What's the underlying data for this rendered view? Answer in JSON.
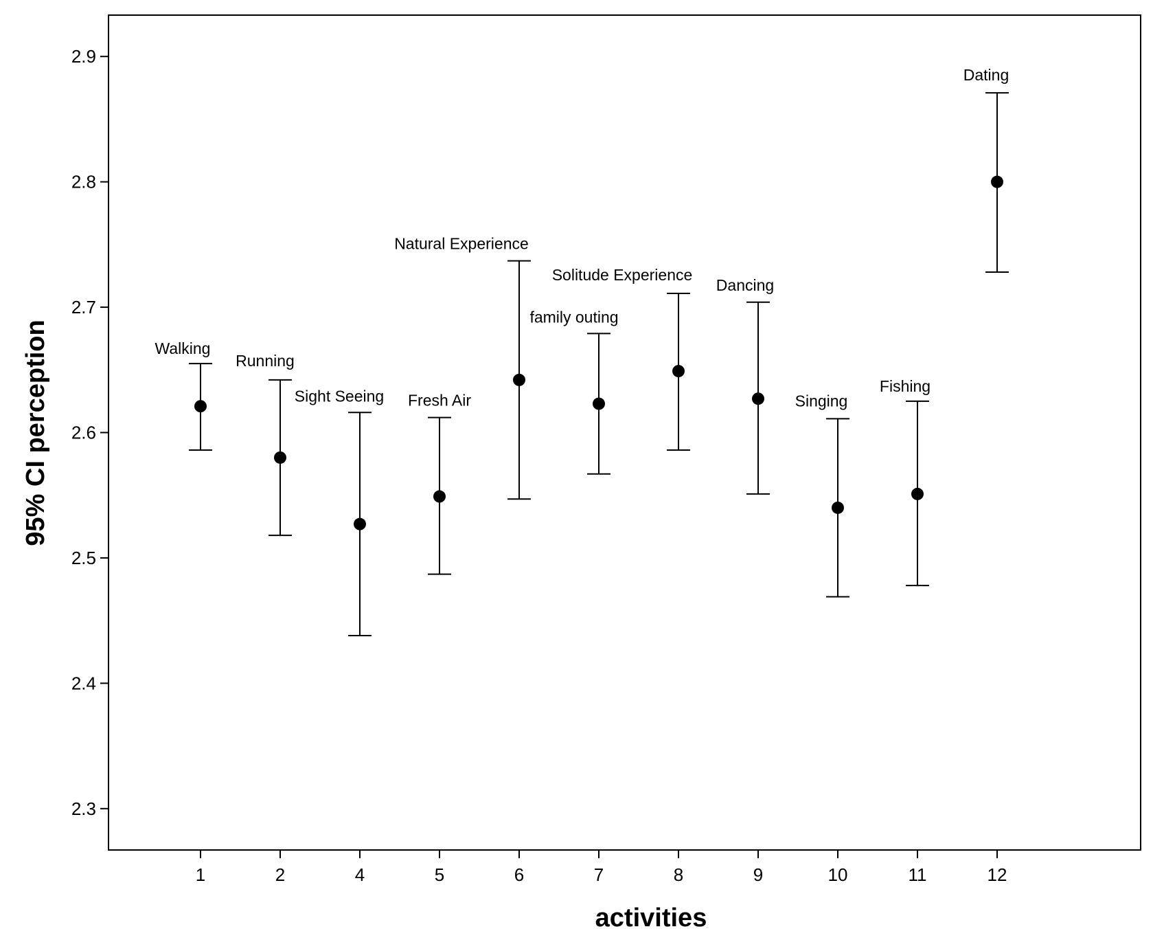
{
  "chart_data": {
    "type": "errorbar",
    "xlabel": "activities",
    "ylabel": "95% CI perception",
    "ylim": [
      2.267,
      2.933
    ],
    "yticks": [
      2.3,
      2.4,
      2.5,
      2.6,
      2.7,
      2.8,
      2.9
    ],
    "grid": false,
    "legend": "none",
    "colors": {
      "marker": "#000000",
      "axis": "#000000",
      "background": "#ffffff"
    },
    "points": [
      {
        "x": "1",
        "label": "Walking",
        "mean": 2.621,
        "lower": 2.586,
        "upper": 2.655
      },
      {
        "x": "2",
        "label": "Running",
        "mean": 2.58,
        "lower": 2.518,
        "upper": 2.642
      },
      {
        "x": "4",
        "label": "Sight Seeing",
        "mean": 2.527,
        "lower": 2.438,
        "upper": 2.616
      },
      {
        "x": "5",
        "label": "Fresh Air",
        "mean": 2.549,
        "lower": 2.487,
        "upper": 2.612
      },
      {
        "x": "6",
        "label": "Natural Experience",
        "mean": 2.642,
        "lower": 2.547,
        "upper": 2.737
      },
      {
        "x": "7",
        "label": "family outing",
        "mean": 2.623,
        "lower": 2.567,
        "upper": 2.679
      },
      {
        "x": "8",
        "label": "Solitude Experience",
        "mean": 2.649,
        "lower": 2.586,
        "upper": 2.711
      },
      {
        "x": "9",
        "label": "Dancing",
        "mean": 2.627,
        "lower": 2.551,
        "upper": 2.704
      },
      {
        "x": "10",
        "label": "Singing",
        "mean": 2.54,
        "lower": 2.469,
        "upper": 2.611
      },
      {
        "x": "11",
        "label": "Fishing",
        "mean": 2.551,
        "lower": 2.478,
        "upper": 2.625
      },
      {
        "x": "12",
        "label": "Dating",
        "mean": 2.8,
        "lower": 2.728,
        "upper": 2.871
      }
    ]
  }
}
